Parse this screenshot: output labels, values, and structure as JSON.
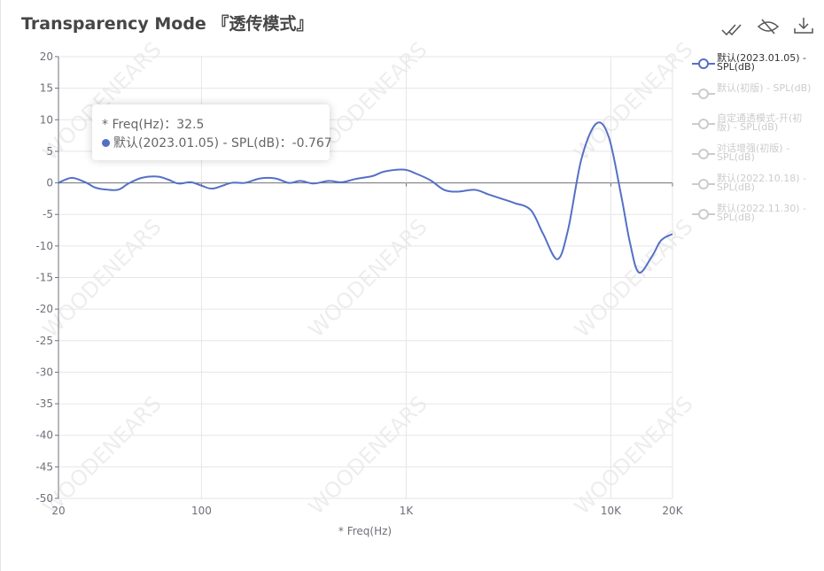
{
  "chart_data": {
    "type": "line",
    "title": "Transparency Mode 『透传模式』",
    "x_label": "* Freq(Hz)",
    "watermark": "WOODENEARS",
    "x": [
      20,
      23.2,
      27,
      30,
      33,
      39,
      44,
      51,
      61,
      69,
      77,
      89,
      101,
      114,
      140,
      163,
      193,
      230,
      267,
      304,
      353,
      418,
      485,
      563,
      687,
      783,
      975,
      1110,
      1315,
      1530,
      1770,
      2160,
      2510,
      2920,
      3390,
      4060,
      4670,
      5480,
      6180,
      7180,
      8490,
      9760,
      11200,
      12400,
      13700,
      15900,
      17600,
      20000
    ],
    "series": [
      {
        "name": "默认(2023.01.05) - SPL(dB)",
        "color": "#5470c6",
        "visible": true,
        "values": [
          0,
          0.8,
          0.1,
          -0.7,
          -1.0,
          -1.1,
          -0.1,
          0.8,
          1.0,
          0.5,
          -0.1,
          0.1,
          -0.5,
          -0.9,
          0,
          0,
          0.7,
          0.7,
          0,
          0.3,
          -0.1,
          0.3,
          0.1,
          0.6,
          1.1,
          1.8,
          2.1,
          1.5,
          0.4,
          -1.1,
          -1.4,
          -1.1,
          -1.8,
          -2.5,
          -3.2,
          -4.3,
          -8.1,
          -12.1,
          -7.4,
          3.8,
          9.4,
          7.3,
          -1.8,
          -9.5,
          -14.2,
          -11.6,
          -9.1,
          -8.1
        ]
      },
      {
        "name": "默认(初版) - SPL(dB)",
        "visible": false
      },
      {
        "name": "自定通透模式-开(初版) - SPL(dB)",
        "visible": false
      },
      {
        "name": "对话增强(初版) - SPL(dB)",
        "visible": false
      },
      {
        "name": "默认(2022.10.18) - SPL(dB)",
        "visible": false
      },
      {
        "name": "默认(2022.11.30) - SPL(dB)",
        "visible": false
      }
    ],
    "xscale": "log",
    "xlim": [
      20,
      20000
    ],
    "xticks": [
      20,
      100,
      {
        "value": 1000,
        "label": "1K"
      },
      {
        "value": 10000,
        "label": "10K"
      },
      {
        "value": 20000,
        "label": "20K"
      }
    ],
    "ylim": [
      -50,
      20
    ],
    "yticks": [
      -50,
      -45,
      -40,
      -35,
      -30,
      -25,
      -20,
      -15,
      -10,
      -5,
      0,
      5,
      10,
      15,
      20
    ],
    "grid": true,
    "legend": "right",
    "tooltip": {
      "x_label": "* Freq(Hz)",
      "x": 32.5,
      "series": "默认(2023.01.05) - SPL(dB)",
      "value": -0.767
    }
  }
}
